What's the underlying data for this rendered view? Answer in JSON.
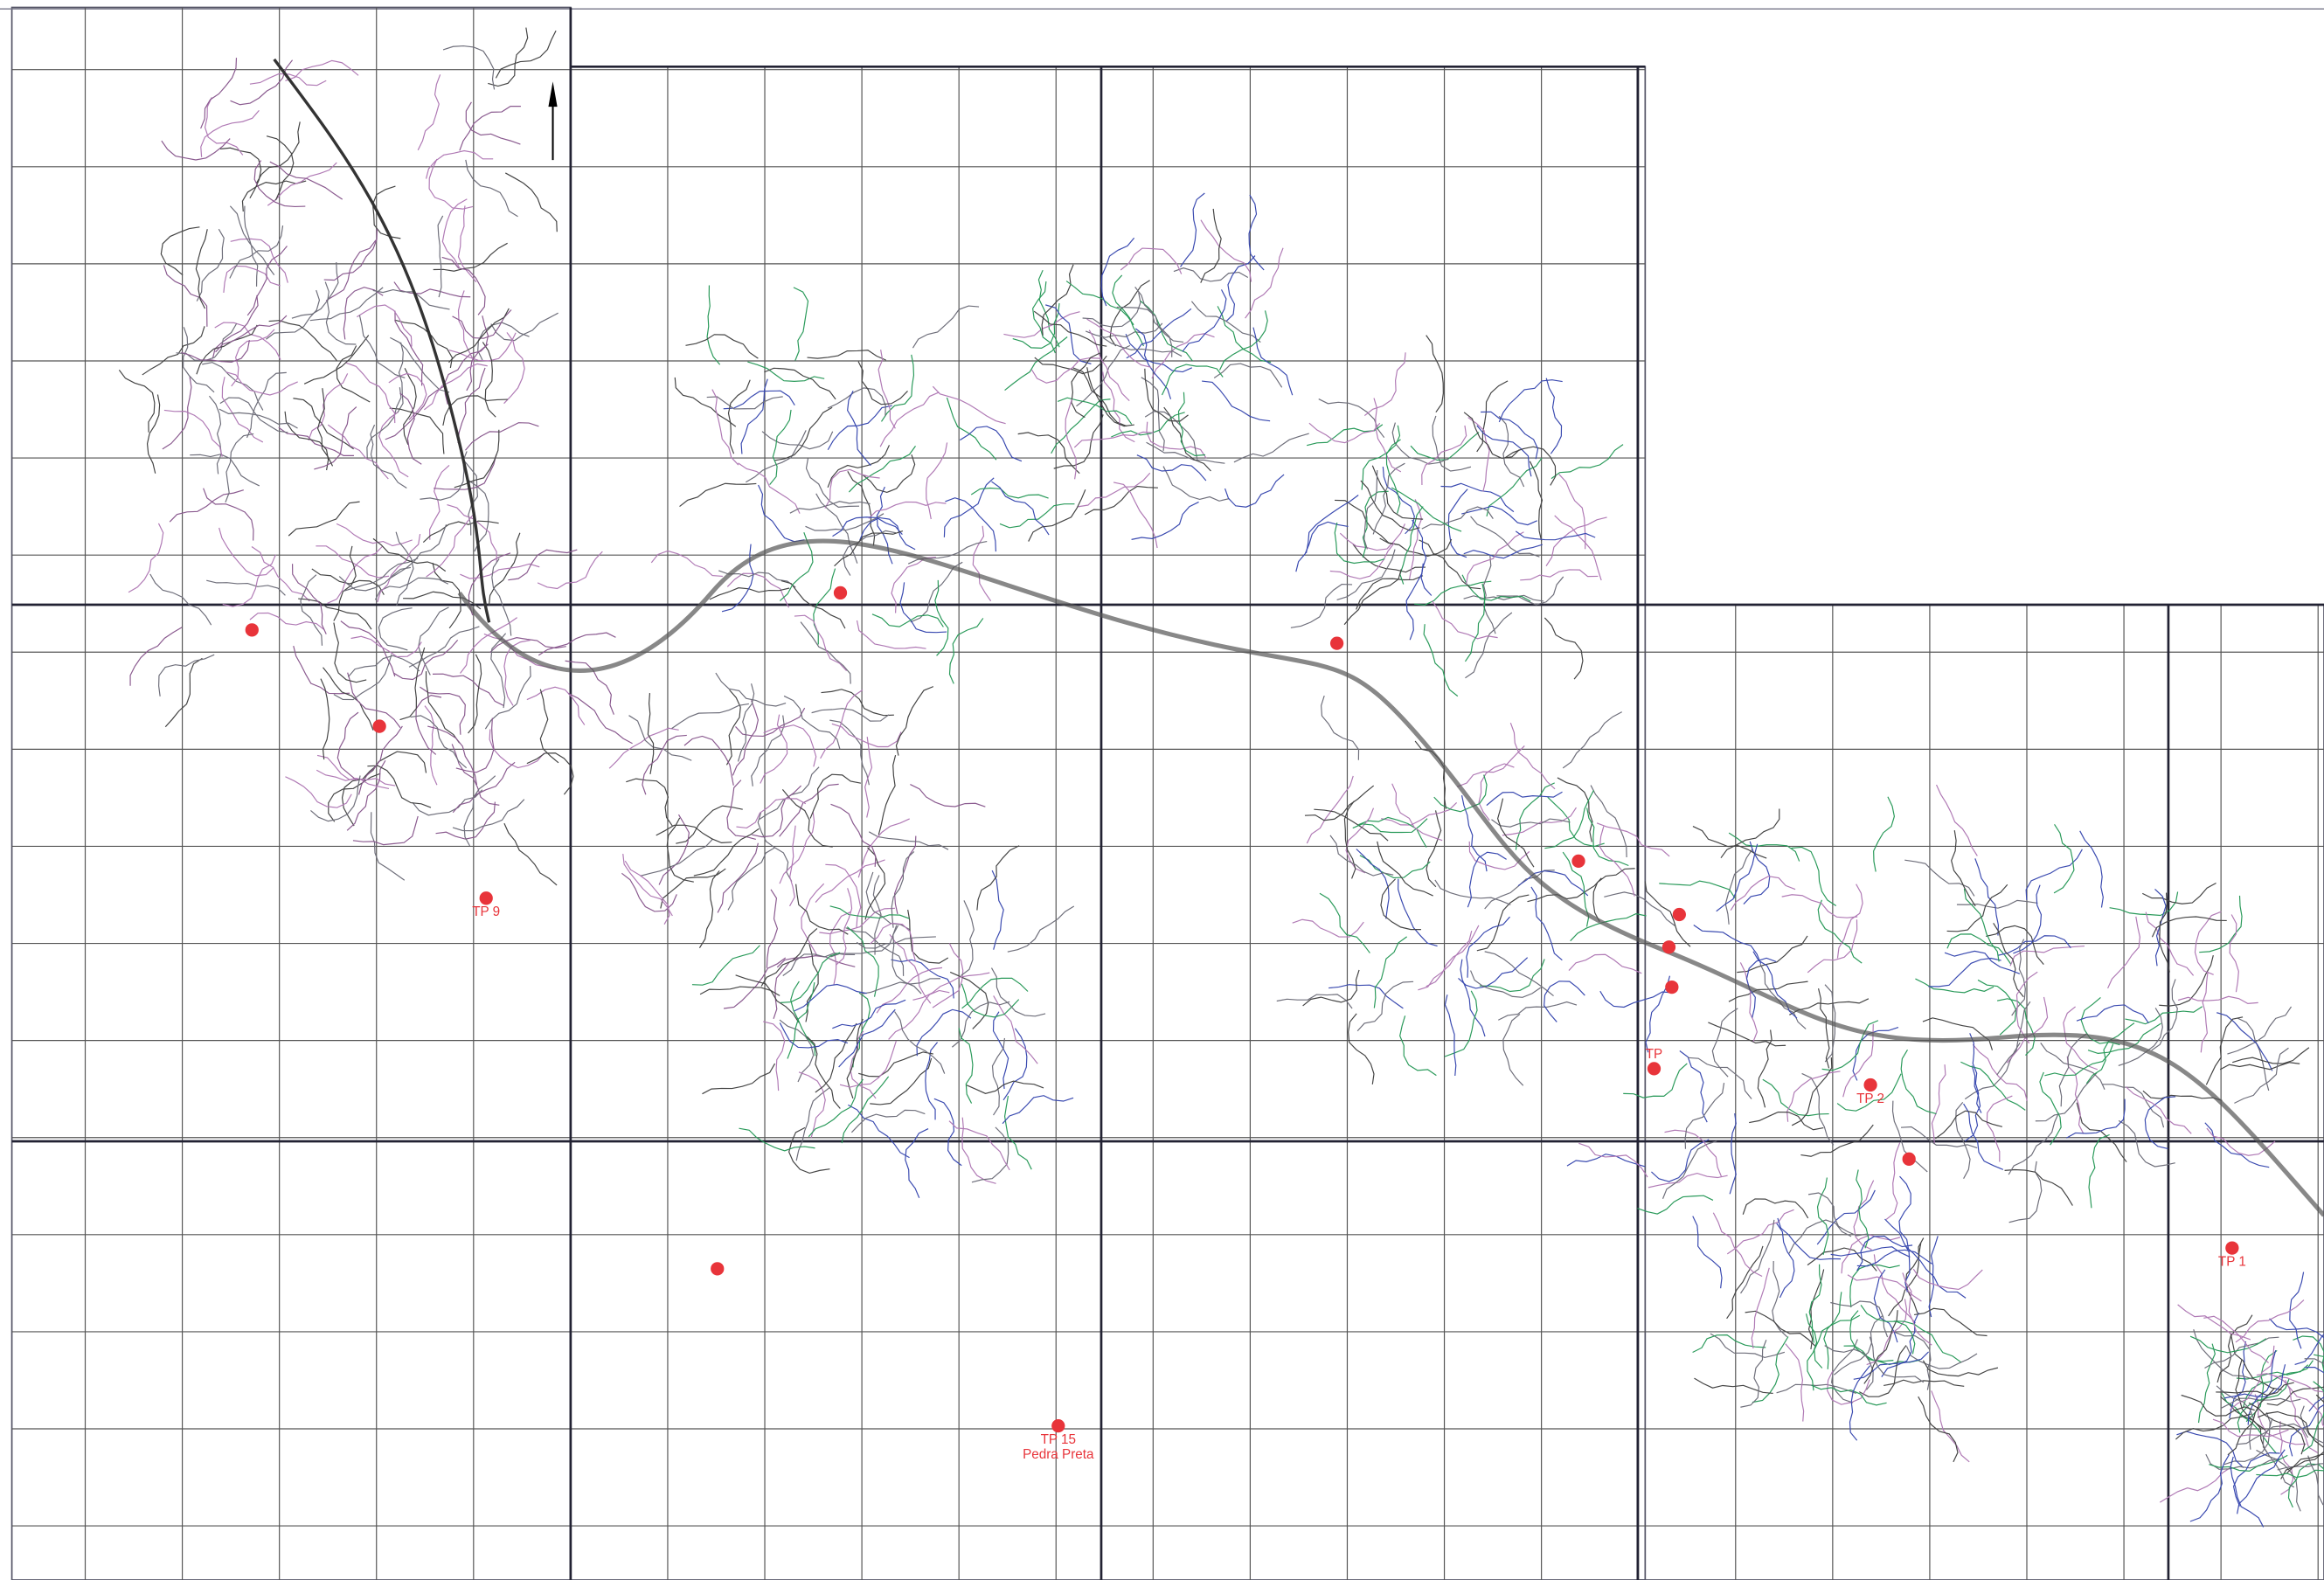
{
  "markers": [
    {
      "label": "TP 9"
    },
    {
      "label": "TP"
    },
    {
      "label": "TP 2"
    },
    {
      "label": "TP 1"
    },
    {
      "label": "TP 15",
      "sublabel": "Pedra Preta"
    }
  ]
}
